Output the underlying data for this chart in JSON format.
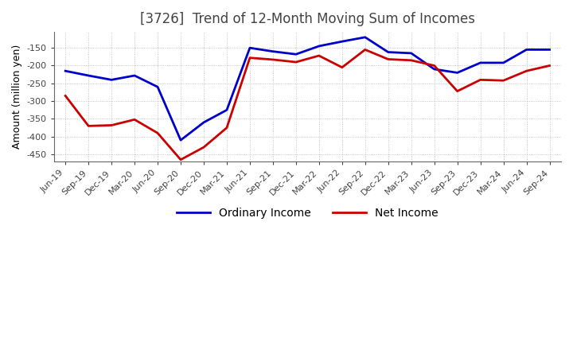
{
  "title": "[3726]  Trend of 12-Month Moving Sum of Incomes",
  "ylabel": "Amount (million yen)",
  "x_labels": [
    "Jun-19",
    "Sep-19",
    "Dec-19",
    "Mar-20",
    "Jun-20",
    "Sep-20",
    "Dec-20",
    "Mar-21",
    "Jun-21",
    "Sep-21",
    "Dec-21",
    "Mar-22",
    "Jun-22",
    "Sep-22",
    "Dec-22",
    "Mar-23",
    "Jun-23",
    "Sep-23",
    "Dec-23",
    "Mar-24",
    "Jun-24",
    "Sep-24"
  ],
  "ordinary_income": [
    -215,
    -228,
    -240,
    -228,
    -260,
    -410,
    -360,
    -325,
    -150,
    -160,
    -168,
    -145,
    -132,
    -120,
    -162,
    -165,
    -210,
    -220,
    -192,
    -192,
    -155,
    -155
  ],
  "net_income": [
    -285,
    -370,
    -368,
    -352,
    -390,
    -465,
    -430,
    -375,
    -178,
    -183,
    -190,
    -172,
    -205,
    -155,
    -182,
    -185,
    -200,
    -272,
    -240,
    -242,
    -215,
    -200
  ],
  "ordinary_color": "#0000cc",
  "net_color": "#cc0000",
  "background_color": "#ffffff",
  "grid_color": "#999999",
  "ylim": [
    -470,
    -105
  ],
  "yticks": [
    -450,
    -400,
    -350,
    -300,
    -250,
    -200,
    -150
  ],
  "title_fontsize": 12,
  "title_color": "#444444",
  "legend_labels": [
    "Ordinary Income",
    "Net Income"
  ],
  "tick_fontsize": 8,
  "ylabel_fontsize": 9
}
